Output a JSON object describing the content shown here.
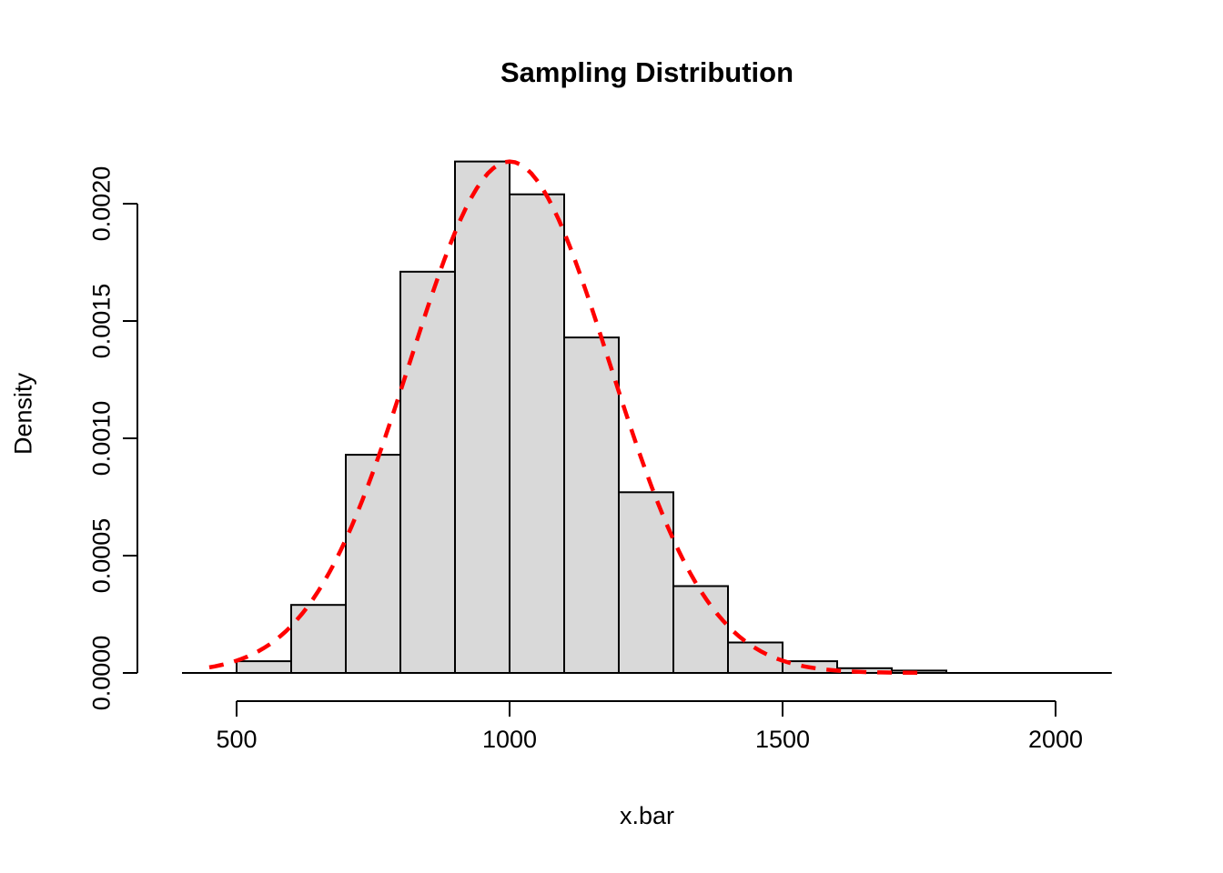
{
  "chart_data": {
    "type": "bar",
    "subtype": "histogram",
    "title": "Sampling Distribution",
    "xlabel": "x.bar",
    "ylabel": "Density",
    "xlim": [
      400,
      2103
    ],
    "ylim": [
      0,
      0.00218
    ],
    "grid": false,
    "bar_fill": "#D9D9D9",
    "bar_stroke": "#000000",
    "bins": [
      {
        "from": 500,
        "to": 600,
        "density": 5e-05
      },
      {
        "from": 600,
        "to": 700,
        "density": 0.00029
      },
      {
        "from": 700,
        "to": 800,
        "density": 0.00093
      },
      {
        "from": 800,
        "to": 900,
        "density": 0.00171
      },
      {
        "from": 900,
        "to": 1000,
        "density": 0.00218
      },
      {
        "from": 1000,
        "to": 1100,
        "density": 0.00204
      },
      {
        "from": 1100,
        "to": 1200,
        "density": 0.00143
      },
      {
        "from": 1200,
        "to": 1300,
        "density": 0.00077
      },
      {
        "from": 1300,
        "to": 1400,
        "density": 0.00037
      },
      {
        "from": 1400,
        "to": 1500,
        "density": 0.00013
      },
      {
        "from": 1500,
        "to": 1600,
        "density": 5e-05
      },
      {
        "from": 1600,
        "to": 1700,
        "density": 2e-05
      },
      {
        "from": 1700,
        "to": 1800,
        "density": 1e-05
      }
    ],
    "x_ticks": [
      {
        "value": 500,
        "label": "500"
      },
      {
        "value": 1000,
        "label": "1000"
      },
      {
        "value": 1500,
        "label": "1500"
      },
      {
        "value": 2000,
        "label": "2000"
      }
    ],
    "y_ticks": [
      {
        "value": 0.0,
        "label": "0.0000"
      },
      {
        "value": 0.0005,
        "label": "0.0005"
      },
      {
        "value": 0.001,
        "label": "0.0010"
      },
      {
        "value": 0.0015,
        "label": "0.0015"
      },
      {
        "value": 0.002,
        "label": "0.0020"
      }
    ],
    "curve": {
      "type": "normal",
      "mean": 1000,
      "sd": 183,
      "from": 450,
      "to": 1750,
      "color": "#FF0000",
      "style": "dashed"
    }
  }
}
